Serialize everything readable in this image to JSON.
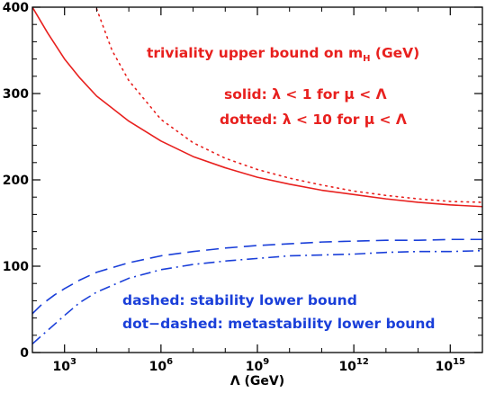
{
  "chart_data": {
    "type": "line",
    "xscale": "log",
    "xlim": [
      100,
      1e+16
    ],
    "ylim": [
      0,
      400
    ],
    "xticks": [
      {
        "value": 1000,
        "base": "10",
        "exp": "3"
      },
      {
        "value": 1000000,
        "base": "10",
        "exp": "6"
      },
      {
        "value": 1000000000,
        "base": "10",
        "exp": "9"
      },
      {
        "value": 1000000000000,
        "base": "10",
        "exp": "12"
      },
      {
        "value": 1000000000000000,
        "base": "10",
        "exp": "15"
      }
    ],
    "yticks": [
      {
        "value": 0,
        "label": "0"
      },
      {
        "value": 100,
        "label": "100"
      },
      {
        "value": 200,
        "label": "200"
      },
      {
        "value": 300,
        "label": "300"
      },
      {
        "value": 400,
        "label": "400"
      }
    ],
    "xlabel": "Λ (GeV)",
    "ylabel": "",
    "series": [
      {
        "key": "solid",
        "color": "#e8201e",
        "dash": "solid",
        "x": [
          100,
          300,
          1000,
          3000,
          10000,
          100000,
          1000000,
          10000000,
          100000000,
          1000000000,
          10000000000,
          100000000000,
          1000000000000,
          10000000000000,
          100000000000000,
          1000000000000000,
          1e+16
        ],
        "y": [
          400,
          370,
          340,
          318,
          297,
          268,
          245,
          227,
          214,
          203,
          195,
          188,
          183,
          178,
          174,
          171,
          169
        ]
      },
      {
        "key": "dotted",
        "color": "#e8201e",
        "dash": "dotted",
        "x": [
          10000,
          30000,
          100000,
          1000000,
          10000000,
          100000000,
          1000000000,
          10000000000,
          100000000000,
          1000000000000,
          10000000000000,
          100000000000000,
          1000000000000000,
          1e+16
        ],
        "y": [
          398,
          350,
          315,
          270,
          243,
          225,
          212,
          202,
          194,
          187,
          182,
          178,
          175,
          174
        ]
      },
      {
        "key": "dashed",
        "color": "#1a3fd9",
        "dash": "dashed",
        "x": [
          100,
          200,
          500,
          1000,
          3000,
          10000,
          100000,
          1000000,
          10000000,
          100000000,
          1000000000,
          10000000000,
          100000000000,
          1000000000000,
          10000000000000,
          100000000000000,
          1000000000000000,
          1e+16
        ],
        "y": [
          45,
          56,
          67,
          74,
          84,
          93,
          104,
          112,
          117,
          121,
          124,
          126,
          128,
          129,
          130,
          130,
          131,
          131
        ]
      },
      {
        "key": "dot-dashed",
        "color": "#1a3fd9",
        "dash": "dashdot",
        "x": [
          100,
          200,
          500,
          1000,
          3000,
          10000,
          100000,
          1000000,
          10000000,
          100000000,
          1000000000,
          10000000000,
          100000000000,
          1000000000000,
          10000000000000,
          100000000000000,
          1000000000000000,
          1e+16
        ],
        "y": [
          10,
          20,
          33,
          43,
          58,
          70,
          86,
          96,
          102,
          106,
          109,
          112,
          113,
          114,
          116,
          117,
          117,
          118
        ]
      }
    ],
    "annotations": {
      "title": {
        "text": "triviality upper bound on m",
        "sub": "H",
        "suffix": " (GeV)",
        "color": "#e8201e"
      },
      "solid": {
        "text": "solid: λ < 1 for μ < Λ",
        "color": "#e8201e"
      },
      "dotted": {
        "text": "dotted: λ < 10 for μ < Λ",
        "color": "#e8201e"
      },
      "dashed": {
        "text": "dashed: stability lower bound",
        "color": "#1a3fd9"
      },
      "dotdashed": {
        "text": "dot−dashed: metastability lower bound",
        "color": "#1a3fd9"
      }
    }
  }
}
